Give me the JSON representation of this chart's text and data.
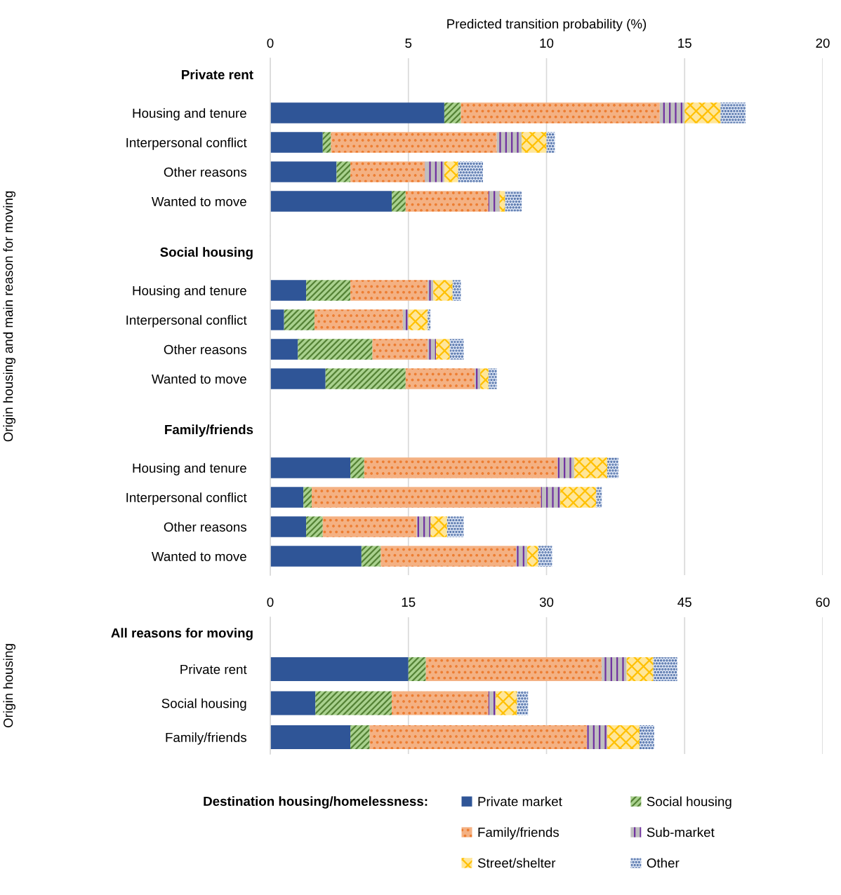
{
  "chart_data": [
    {
      "type": "bar",
      "orientation": "horizontal",
      "stacked": true,
      "title": "Private rent",
      "xlabel": "Predicted transition probability (%)",
      "ylabel": "Origin housing and main reason for moving",
      "categories": [
        "Housing and tenure",
        "Interpersonal conflict",
        "Other reasons",
        "Wanted to move"
      ],
      "xlim": [
        0,
        20
      ],
      "xticks": [
        0,
        5,
        10,
        15,
        20
      ],
      "grid": "x",
      "tick_labels": "x",
      "series": [
        {
          "color": "#2f5597",
          "values": [
            6.3,
            1.9,
            2.4,
            4.4
          ]
        },
        {
          "color": "#a9d18e",
          "values": [
            0.6,
            0.3,
            0.5,
            0.5
          ]
        },
        {
          "color": "#f4b183",
          "values": [
            7.2,
            6.0,
            2.7,
            3.0
          ]
        },
        {
          "color": "#bfbfbf",
          "values": [
            0.9,
            0.9,
            0.7,
            0.4
          ]
        },
        {
          "color": "#ffe699",
          "values": [
            1.3,
            0.9,
            0.5,
            0.2
          ]
        },
        {
          "color": "#dae3f3",
          "values": [
            0.9,
            0.3,
            0.9,
            0.6
          ]
        }
      ]
    },
    {
      "type": "bar",
      "orientation": "horizontal",
      "stacked": true,
      "title": "Social housing",
      "categories": [
        "Housing and tenure",
        "Interpersonal conflict",
        "Other reasons",
        "Wanted to move"
      ],
      "xlim": [
        0,
        20
      ],
      "xticks": [
        0,
        5,
        10,
        15,
        20
      ],
      "grid": "x",
      "tick_labels": false,
      "series": [
        {
          "color": "#2f5597",
          "values": [
            1.3,
            0.5,
            1.0,
            2.0
          ]
        },
        {
          "color": "#a9d18e",
          "values": [
            1.6,
            1.1,
            2.7,
            2.9
          ]
        },
        {
          "color": "#f4b183",
          "values": [
            2.8,
            3.2,
            2.0,
            2.5
          ]
        },
        {
          "color": "#bfbfbf",
          "values": [
            0.2,
            0.2,
            0.3,
            0.2
          ]
        },
        {
          "color": "#ffe699",
          "values": [
            0.7,
            0.7,
            0.5,
            0.3
          ]
        },
        {
          "color": "#dae3f3",
          "values": [
            0.3,
            0.1,
            0.5,
            0.3
          ]
        }
      ]
    },
    {
      "type": "bar",
      "orientation": "horizontal",
      "stacked": true,
      "title": "Family/friends",
      "categories": [
        "Housing and tenure",
        "Interpersonal conflict",
        "Other reasons",
        "Wanted to move"
      ],
      "xlim": [
        0,
        20
      ],
      "xticks": [
        0,
        5,
        10,
        15,
        20
      ],
      "grid": "x",
      "tick_labels": false,
      "series": [
        {
          "color": "#2f5597",
          "values": [
            2.9,
            1.2,
            1.3,
            3.3
          ]
        },
        {
          "color": "#a9d18e",
          "values": [
            0.5,
            0.3,
            0.6,
            0.7
          ]
        },
        {
          "color": "#f4b183",
          "values": [
            7.0,
            8.3,
            3.4,
            4.9
          ]
        },
        {
          "color": "#bfbfbf",
          "values": [
            0.6,
            0.7,
            0.5,
            0.4
          ]
        },
        {
          "color": "#ffe699",
          "values": [
            1.2,
            1.3,
            0.6,
            0.4
          ]
        },
        {
          "color": "#dae3f3",
          "values": [
            0.4,
            0.2,
            0.6,
            0.5
          ]
        }
      ]
    },
    {
      "type": "bar",
      "orientation": "horizontal",
      "stacked": true,
      "title": "All reasons for moving",
      "ylabel": "Origin housing",
      "categories": [
        "Private rent",
        "Social housing",
        "Family/friends"
      ],
      "xlim": [
        0,
        60
      ],
      "xticks": [
        0,
        15,
        30,
        45,
        60
      ],
      "grid": "x",
      "tick_labels": "x",
      "legend": "bottom",
      "legend_title": "Destination housing/homelessness:",
      "series": [
        {
          "name": "Private market",
          "color": "#2f5597",
          "values": [
            15.0,
            4.9,
            8.7
          ]
        },
        {
          "name": "Social housing",
          "color": "#a9d18e",
          "values": [
            1.9,
            8.3,
            2.1
          ]
        },
        {
          "name": "Family/friends",
          "color": "#f4b183",
          "values": [
            19.1,
            10.5,
            23.6
          ]
        },
        {
          "name": "Sub-market",
          "color": "#bfbfbf",
          "values": [
            2.7,
            0.8,
            2.2
          ]
        },
        {
          "name": "Street/shelter",
          "color": "#ffe699",
          "values": [
            2.9,
            2.3,
            3.5
          ]
        },
        {
          "name": "Other",
          "color": "#dae3f3",
          "values": [
            2.6,
            1.2,
            1.6
          ]
        }
      ]
    }
  ]
}
